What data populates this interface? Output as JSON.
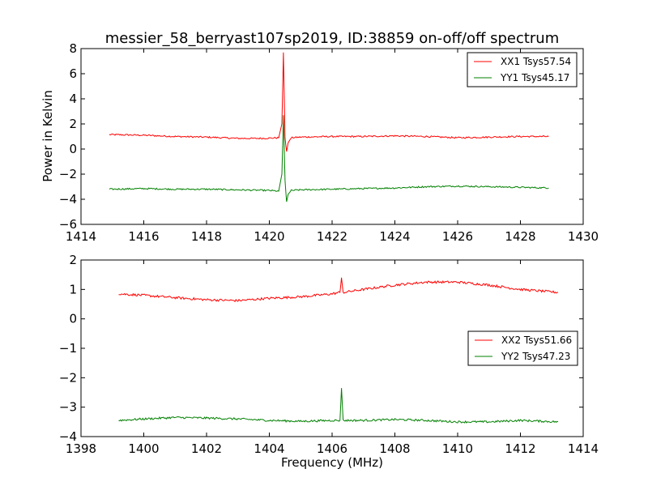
{
  "figure": {
    "title": "messier_58_berryast107sp2019, ID:38859 on-off/off spectrum",
    "ylabel": "Power in Kelvin",
    "xlabel": "Frequency (MHz)"
  },
  "colors": {
    "red": "#ff0000",
    "green": "#008000"
  },
  "chart_data": [
    {
      "type": "line",
      "xlim": [
        1414,
        1430
      ],
      "ylim": [
        -6,
        8
      ],
      "xticks": [
        1414,
        1416,
        1418,
        1420,
        1422,
        1424,
        1426,
        1428,
        1430
      ],
      "yticks": [
        -6,
        -4,
        -2,
        0,
        2,
        4,
        6,
        8
      ],
      "xtick_labels": [
        "1414",
        "1416",
        "1418",
        "1420",
        "1422",
        "1424",
        "1426",
        "1428",
        "1430"
      ],
      "ytick_labels": [
        "−6",
        "−4",
        "−2",
        "0",
        "2",
        "4",
        "6",
        "8"
      ],
      "legend": "top-right",
      "series": [
        {
          "name": "XX1 Tsys57.54",
          "color": "#ff0000",
          "noise": 0.06,
          "x": [
            1414.9,
            1416.0,
            1417.0,
            1418.0,
            1419.0,
            1419.8,
            1420.3,
            1420.4,
            1420.45,
            1420.5,
            1420.55,
            1420.6,
            1420.7,
            1421.0,
            1422.0,
            1423.0,
            1424.0,
            1425.0,
            1426.0,
            1427.0,
            1428.0,
            1428.9
          ],
          "y": [
            1.15,
            1.1,
            1.0,
            0.95,
            0.85,
            0.85,
            0.9,
            2.0,
            7.7,
            0.9,
            -0.2,
            0.5,
            0.9,
            0.95,
            1.0,
            1.0,
            1.05,
            1.0,
            0.9,
            0.95,
            1.0,
            1.0
          ]
        },
        {
          "name": "YY1 Tsys45.17",
          "color": "#008000",
          "noise": 0.06,
          "x": [
            1414.9,
            1416.0,
            1417.0,
            1418.0,
            1419.0,
            1420.0,
            1420.3,
            1420.4,
            1420.45,
            1420.5,
            1420.55,
            1420.6,
            1420.7,
            1421.0,
            1422.0,
            1423.0,
            1424.0,
            1425.0,
            1426.0,
            1427.0,
            1428.0,
            1428.9
          ],
          "y": [
            -3.2,
            -3.15,
            -3.2,
            -3.2,
            -3.25,
            -3.3,
            -3.35,
            -2.0,
            2.7,
            -2.5,
            -4.2,
            -3.6,
            -3.3,
            -3.25,
            -3.2,
            -3.15,
            -3.1,
            -3.0,
            -2.95,
            -3.0,
            -3.05,
            -3.1
          ]
        }
      ]
    },
    {
      "type": "line",
      "xlim": [
        1398,
        1414
      ],
      "ylim": [
        -4,
        2
      ],
      "xticks": [
        1398,
        1400,
        1402,
        1404,
        1406,
        1408,
        1410,
        1412,
        1414
      ],
      "yticks": [
        -4,
        -3,
        -2,
        -1,
        0,
        1,
        2
      ],
      "xtick_labels": [
        "1398",
        "1400",
        "1402",
        "1404",
        "1406",
        "1408",
        "1410",
        "1412",
        "1414"
      ],
      "ytick_labels": [
        "−4",
        "−3",
        "−2",
        "−1",
        "0",
        "1",
        "2"
      ],
      "legend": "center-right",
      "series": [
        {
          "name": "XX2 Tsys51.66",
          "color": "#ff0000",
          "noise": 0.04,
          "x": [
            1399.2,
            1400.0,
            1401.0,
            1402.0,
            1403.0,
            1404.0,
            1405.0,
            1406.0,
            1406.25,
            1406.3,
            1406.35,
            1407.0,
            1408.0,
            1409.0,
            1410.0,
            1411.0,
            1412.0,
            1413.2
          ],
          "y": [
            0.85,
            0.8,
            0.72,
            0.65,
            0.62,
            0.7,
            0.75,
            0.85,
            0.9,
            1.4,
            0.9,
            1.0,
            1.15,
            1.25,
            1.25,
            1.15,
            1.0,
            0.9
          ]
        },
        {
          "name": "YY2 Tsys47.23",
          "color": "#008000",
          "noise": 0.035,
          "x": [
            1399.2,
            1400.0,
            1401.0,
            1402.0,
            1403.0,
            1404.0,
            1405.0,
            1406.0,
            1406.25,
            1406.3,
            1406.35,
            1407.0,
            1408.0,
            1409.0,
            1410.0,
            1411.0,
            1412.0,
            1413.2
          ],
          "y": [
            -3.45,
            -3.4,
            -3.35,
            -3.37,
            -3.4,
            -3.45,
            -3.48,
            -3.45,
            -3.45,
            -2.35,
            -3.45,
            -3.45,
            -3.42,
            -3.45,
            -3.5,
            -3.5,
            -3.45,
            -3.5
          ]
        }
      ]
    }
  ]
}
